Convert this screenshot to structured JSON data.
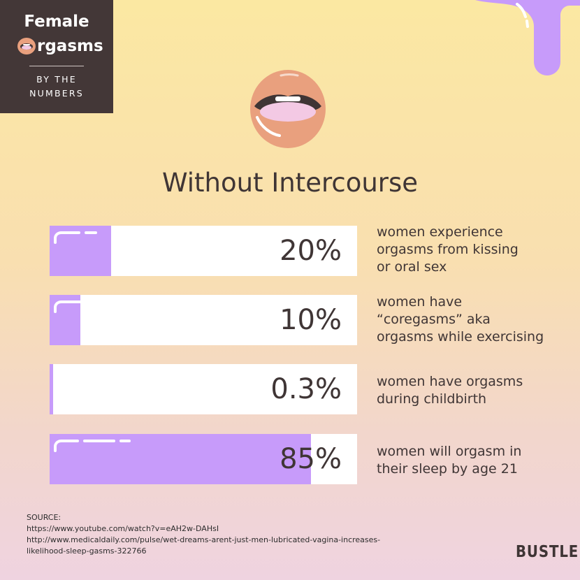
{
  "brand": {
    "line1": "Female",
    "line2_rest": "rgasms",
    "sub1": "BY THE",
    "sub2": "NUMBERS"
  },
  "title": "Without Intercourse",
  "colors": {
    "bar_fill": "#c79bfa",
    "bar_track": "#ffffff",
    "text": "#3f3535",
    "brand_box": "#433737",
    "lips": "#e9a07e",
    "tongue": "#f3c9e4"
  },
  "chart_data": {
    "type": "bar",
    "orientation": "horizontal",
    "title": "Without Intercourse",
    "xlim": [
      0,
      100
    ],
    "categories": [
      "women experience orgasms from kissing or oral sex",
      "women have “coregasms” aka orgasms while exercising",
      "women have orgasms during childbirth",
      "women will orgasm in their sleep by age 21"
    ],
    "values": [
      20,
      10,
      0.3,
      85
    ],
    "value_labels": [
      "20%",
      "10%",
      "0.3%",
      "85%"
    ],
    "descriptions": [
      [
        "women experience",
        "orgasms from kissing",
        "or oral sex"
      ],
      [
        "women have",
        "“coregasms” aka",
        "orgasms while exercising"
      ],
      [
        "women have orgasms",
        "during childbirth"
      ],
      [
        "women will orgasm in",
        "their sleep by age 21"
      ]
    ]
  },
  "source": {
    "heading": "SOURCE:",
    "lines": [
      "https://www.youtube.com/watch?v=eAH2w-DAHsI",
      "http://www.medicaldaily.com/pulse/wet-dreams-arent-just-men-lubricated-vagina-increases-",
      "likelihood-sleep-gasms-322766"
    ]
  },
  "logo": "BUSTLE"
}
